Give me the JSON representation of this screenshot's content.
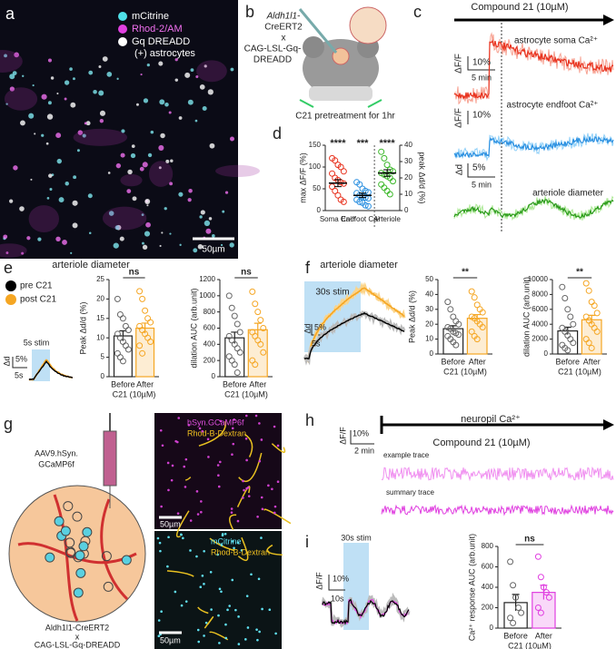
{
  "figure": {
    "panel_letters": [
      "a",
      "b",
      "c",
      "d",
      "e",
      "f",
      "g",
      "h",
      "i"
    ],
    "a": {
      "legend": [
        "mCitrine",
        "Rhod-2/AM",
        "Gq DREADD",
        "(+) astrocytes"
      ],
      "scale": "50µm"
    },
    "b": {
      "genotype": [
        "Aldh1l1-",
        "CreERT2",
        "x",
        "CAG-LSL-Gq-",
        "DREADD"
      ],
      "note": "C21 pretreatment for 1hr"
    },
    "c": {
      "drug": "Compound 21 (10µM)",
      "traces": [
        "astrocyte soma Ca²⁺",
        "astrocyte endfoot Ca²⁺",
        "arteriole diameter"
      ],
      "dff": "ΔF/F",
      "dff2": "ΔF/F",
      "dd": "Δd",
      "s10a": "10%",
      "s10b": "10%",
      "s5": "5%",
      "t5a": "5 min",
      "t5b": "5 min"
    },
    "e": {
      "legend": [
        "pre C21",
        "post C21"
      ],
      "title": "arteriole diameter",
      "stim": "5s stim",
      "dd": "Δd",
      "s5": "5%",
      "t5": "5s"
    },
    "f": {
      "title": "arteriole diameter",
      "stim": "30s stim",
      "dd": "Δd",
      "s5": "5%",
      "t5": "5s"
    },
    "g": {
      "virus": [
        "AAV9.hSyn.",
        "GCaMP6f"
      ],
      "genotype": [
        "Aldh1l1-CreERT2",
        "x",
        "CAG-LSL-Gq-DREADD"
      ],
      "img1": [
        "hSyn.GCaMP6f",
        "Rhod-B-Dextran"
      ],
      "img2": [
        "mCitrine",
        "Rhod-B-Dextran"
      ],
      "scale1": "50µm",
      "scale2": "50µm"
    },
    "h": {
      "title": "neuropil Ca²⁺",
      "drug": "Compound 21 (10µM)",
      "dff": "ΔF/F",
      "s10": "10%",
      "t2": "2 min",
      "example": "example trace",
      "summary": "summary trace"
    },
    "i": {
      "stim": "30s stim",
      "dff": "ΔF/F",
      "s10": "10%",
      "t10": "10s"
    }
  },
  "chart_data": [
    {
      "type": "dot",
      "ylabel": "max ΔF/F (%)",
      "y2label": "peak Δd/d (%)",
      "ylim": [
        0,
        150
      ],
      "yticks": [
        0,
        50,
        100,
        150
      ],
      "y2lim": [
        0,
        40
      ],
      "y2ticks": [
        0,
        10,
        20,
        30,
        40
      ],
      "series": [
        {
          "name": "Soma Ca²⁺",
          "color": "#e8321e",
          "annotation": "****",
          "mean": 63,
          "error": 8,
          "values": [
            120,
            115,
            105,
            100,
            90,
            85,
            75,
            70,
            65,
            62,
            55,
            45,
            35,
            25,
            20
          ]
        },
        {
          "name": "Endfoot Ca²⁺",
          "color": "#2a8fe0",
          "annotation": "***",
          "mean": 35,
          "error": 5,
          "values": [
            65,
            60,
            50,
            45,
            42,
            40,
            35,
            33,
            30,
            28,
            25,
            20,
            18,
            12,
            10
          ]
        },
        {
          "name": "Arteriole",
          "color": "#3cb82a",
          "axis": "y2",
          "annotation": "****",
          "mean": 23,
          "error": 2,
          "values": [
            36,
            32,
            28,
            25,
            24,
            23,
            22,
            21,
            20,
            18,
            16,
            14,
            12,
            10
          ]
        }
      ]
    },
    {
      "type": "bar",
      "ylabel": "Peak Δd/d (%)",
      "annotation": "ns",
      "categories": [
        "Before",
        "After"
      ],
      "xlabel": "C21 (10µM)",
      "colors": [
        "#222222",
        "#f5a623"
      ],
      "values": [
        10.5,
        12.5
      ],
      "errors": [
        1.3,
        1.3
      ],
      "points": [
        [
          20,
          16,
          15,
          13,
          12,
          11,
          10,
          9,
          8,
          7,
          6,
          5,
          4
        ],
        [
          22,
          20,
          17,
          15,
          14,
          13,
          12,
          11,
          10,
          9,
          8,
          6
        ]
      ],
      "ylim": [
        0,
        25
      ],
      "yticks": [
        0,
        5,
        10,
        15,
        20,
        25
      ]
    },
    {
      "type": "bar",
      "ylabel": "dilation AUC (arb.unit)",
      "annotation": "ns",
      "categories": [
        "Before",
        "After"
      ],
      "xlabel": "C21 (10µM)",
      "colors": [
        "#222222",
        "#f5a623"
      ],
      "values": [
        480,
        580
      ],
      "errors": [
        70,
        80
      ],
      "points": [
        [
          1000,
          850,
          750,
          650,
          550,
          500,
          450,
          400,
          350,
          300,
          250,
          200,
          150,
          50
        ],
        [
          1050,
          900,
          800,
          700,
          600,
          550,
          500,
          450,
          400,
          300,
          200,
          150
        ]
      ],
      "ylim": [
        0,
        1200
      ],
      "yticks": [
        0,
        200,
        400,
        600,
        800,
        1000,
        1200
      ]
    },
    {
      "type": "bar",
      "ylabel": "Peak Δd/d (%)",
      "annotation": "**",
      "categories": [
        "Before",
        "After"
      ],
      "xlabel": "C21 (10µM)",
      "colors": [
        "#222222",
        "#f5a623"
      ],
      "values": [
        17,
        24
      ],
      "errors": [
        2,
        2.5
      ],
      "points": [
        [
          35,
          30,
          25,
          22,
          20,
          18,
          17,
          15,
          14,
          13,
          12,
          10,
          8,
          6
        ],
        [
          42,
          38,
          33,
          30,
          28,
          25,
          24,
          22,
          20,
          18,
          15,
          12,
          10
        ]
      ],
      "ylim": [
        0,
        50
      ],
      "yticks": [
        0,
        10,
        20,
        30,
        40,
        50
      ]
    },
    {
      "type": "bar",
      "ylabel": "dilation AUC (arb.unit)",
      "annotation": "**",
      "categories": [
        "Before",
        "After"
      ],
      "xlabel": "C21 (10µM)",
      "colors": [
        "#222222",
        "#f5a623"
      ],
      "values": [
        3100,
        4600
      ],
      "errors": [
        500,
        600
      ],
      "points": [
        [
          9000,
          7500,
          6000,
          5000,
          4000,
          3500,
          3000,
          2500,
          2000,
          1500,
          1200,
          800,
          500
        ],
        [
          9500,
          8500,
          7000,
          6500,
          5500,
          5000,
          4500,
          4000,
          3500,
          3000,
          2000,
          1500,
          800
        ]
      ],
      "ylim": [
        0,
        10000
      ],
      "yticks": [
        0,
        2000,
        4000,
        6000,
        8000,
        10000
      ]
    },
    {
      "type": "bar",
      "ylabel": "Ca²⁺ response AUC (arb.unit)",
      "annotation": "ns",
      "categories": [
        "Before",
        "After"
      ],
      "xlabel": "C21 (10µM)",
      "colors": [
        "#222222",
        "#e040e0"
      ],
      "values": [
        250,
        350
      ],
      "errors": [
        80,
        70
      ],
      "points": [
        [
          650,
          420,
          300,
          200,
          150,
          100,
          50
        ],
        [
          700,
          500,
          400,
          350,
          300,
          200,
          150
        ]
      ],
      "ylim": [
        0,
        800
      ],
      "yticks": [
        0,
        200,
        400,
        600,
        800
      ]
    }
  ]
}
